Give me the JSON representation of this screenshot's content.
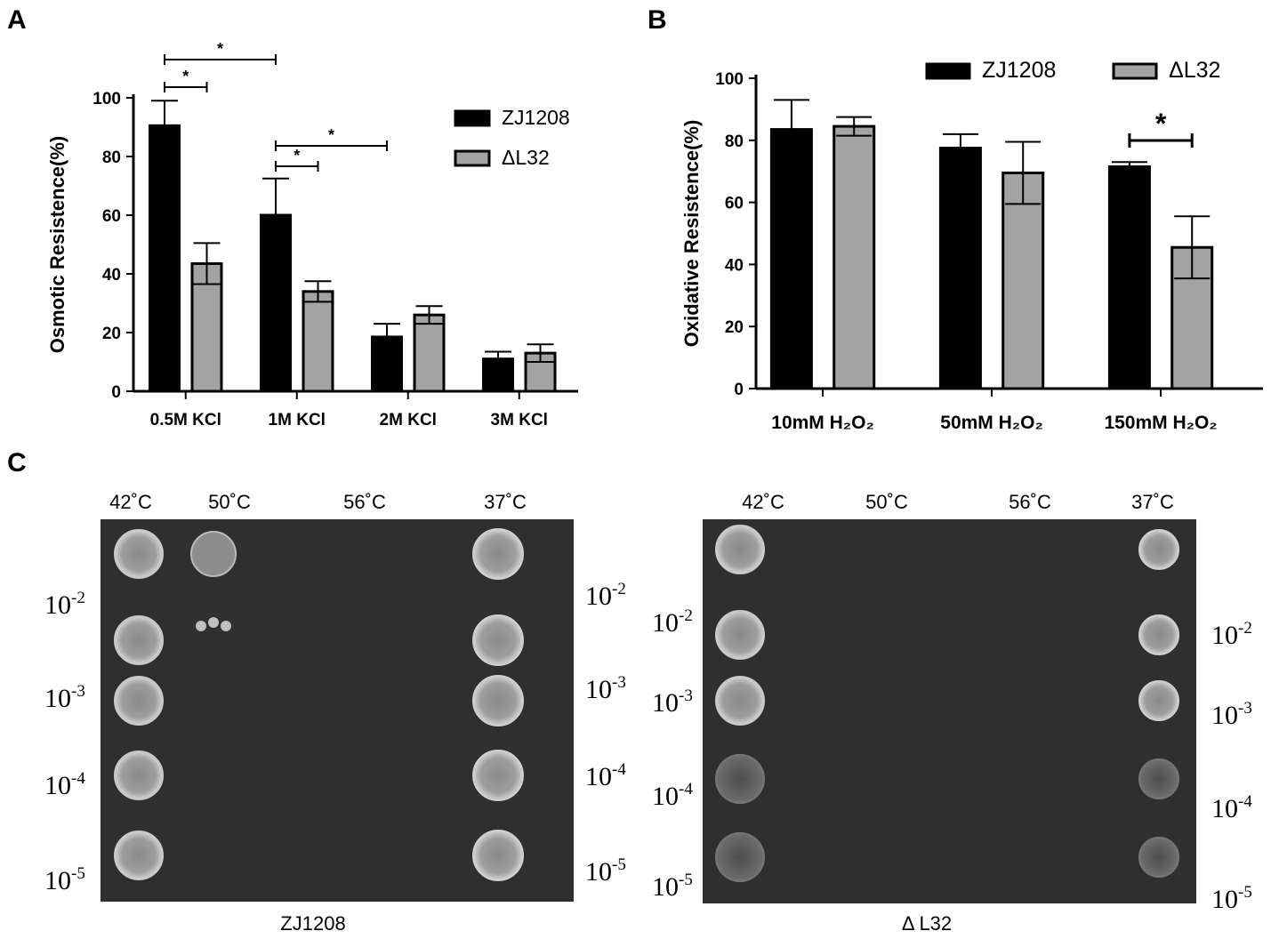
{
  "panels": {
    "a": "A",
    "b": "B",
    "c": "C"
  },
  "chart_data": [
    {
      "type": "bar",
      "ylabel": "Osmotic Resistence(%)",
      "xlabel": "",
      "ylim": [
        0,
        100
      ],
      "yticks": [
        0,
        20,
        40,
        60,
        80,
        100
      ],
      "categories": [
        "0.5M KCl",
        "1M KCl",
        "2M KCl",
        "3M KCl"
      ],
      "legend_position": "top-right",
      "series": [
        {
          "name": "ZJ1208",
          "color": "#000000",
          "values": [
            90.5,
            60,
            18.5,
            11
          ],
          "errors": [
            8.5,
            12.5,
            4.5,
            2.5
          ]
        },
        {
          "name": "ΔL32",
          "color": "#a3a3a3",
          "values": [
            43.5,
            34,
            26,
            13
          ],
          "errors": [
            7,
            3.5,
            3,
            3
          ]
        }
      ],
      "annotations": [
        {
          "text": "*",
          "from": [
            0,
            0
          ],
          "to": [
            1,
            0
          ]
        },
        {
          "text": "*",
          "from": [
            0,
            0
          ],
          "to": [
            0,
            1
          ]
        },
        {
          "text": "*",
          "from": [
            1,
            0
          ],
          "to": [
            2,
            0
          ]
        },
        {
          "text": "*",
          "from": [
            1,
            0
          ],
          "to": [
            1,
            1
          ]
        }
      ]
    },
    {
      "type": "bar",
      "ylabel": "Oxidative Resistence(%)",
      "xlabel": "",
      "ylim": [
        0,
        100
      ],
      "yticks": [
        0,
        20,
        40,
        60,
        80,
        100
      ],
      "categories": [
        "10mM H₂O₂",
        "50mM H₂O₂",
        "150mM H₂O₂"
      ],
      "legend_position": "top",
      "series": [
        {
          "name": "ZJ1208",
          "color": "#000000",
          "values": [
            83.5,
            77.5,
            71.5
          ],
          "errors": [
            9.5,
            4.5,
            1.5
          ]
        },
        {
          "name": "ΔL32",
          "color": "#a3a3a3",
          "values": [
            84.5,
            69.5,
            45.5
          ],
          "errors": [
            3,
            10,
            10
          ]
        }
      ],
      "annotations": [
        {
          "text": "*",
          "from": [
            2,
            0
          ],
          "to": [
            2,
            1
          ]
        }
      ]
    }
  ],
  "plates": [
    {
      "caption": "ZJ1208",
      "temps": [
        "42˚C",
        "50˚C",
        "56˚C",
        "37˚C"
      ],
      "dilution_base": "10",
      "left_exponents": [
        "-2",
        "-3",
        "-4",
        "-5"
      ],
      "right_exponents": [
        "-2",
        "-3",
        "-4",
        "-5"
      ]
    },
    {
      "caption": "Δ L32",
      "temps": [
        "42˚C",
        "50˚C",
        "56˚C",
        "37˚C"
      ],
      "dilution_base": "10",
      "left_exponents": [
        "-2",
        "-3",
        "-4",
        "-5"
      ],
      "right_exponents": [
        "-2",
        "-3",
        "-4",
        "-5"
      ]
    }
  ]
}
